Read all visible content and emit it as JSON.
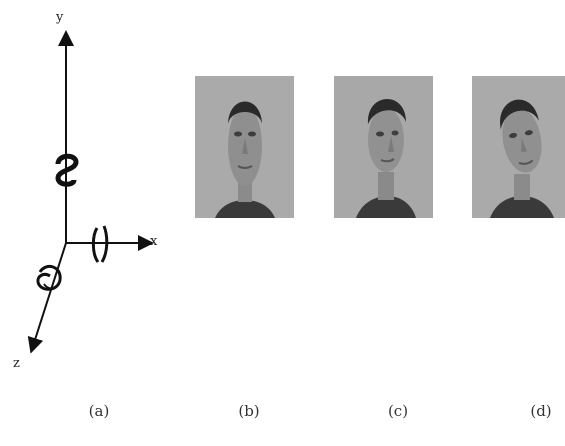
{
  "axes": {
    "y_label": "y",
    "x_label": "x",
    "z_label": "z"
  },
  "panels": [
    {
      "caption": "(a)",
      "content": "axes"
    },
    {
      "caption": "(b)",
      "content": "face-photo"
    },
    {
      "caption": "(c)",
      "content": "face-photo"
    },
    {
      "caption": "(d)",
      "content": "face-photo"
    }
  ]
}
